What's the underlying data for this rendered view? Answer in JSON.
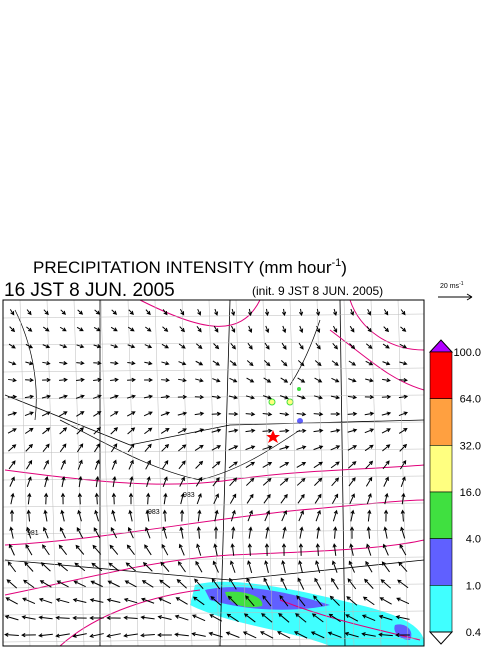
{
  "header": {
    "title_main": "PRECIPITATION INTENSITY (mm hour",
    "title_exponent": "-1",
    "title_end": ")",
    "valid_time": "16 JST 8 JUN. 2005",
    "init_time": "(init. 9 JST 8 JUN. 2005)"
  },
  "vector_scale": {
    "label_main": "20 ms",
    "label_exponent": "-1"
  },
  "colorbar": {
    "labels": [
      "100.0",
      "64.0",
      "32.0",
      "16.0",
      "4.0",
      "1.0",
      "0.4"
    ],
    "colors": [
      "#b000ff",
      "#ff0000",
      "#ffa040",
      "#ffff80",
      "#40e040",
      "#6060ff",
      "#40ffff",
      "#ffffff"
    ]
  },
  "isobar_labels": [
    "983",
    "983",
    "981"
  ]
}
